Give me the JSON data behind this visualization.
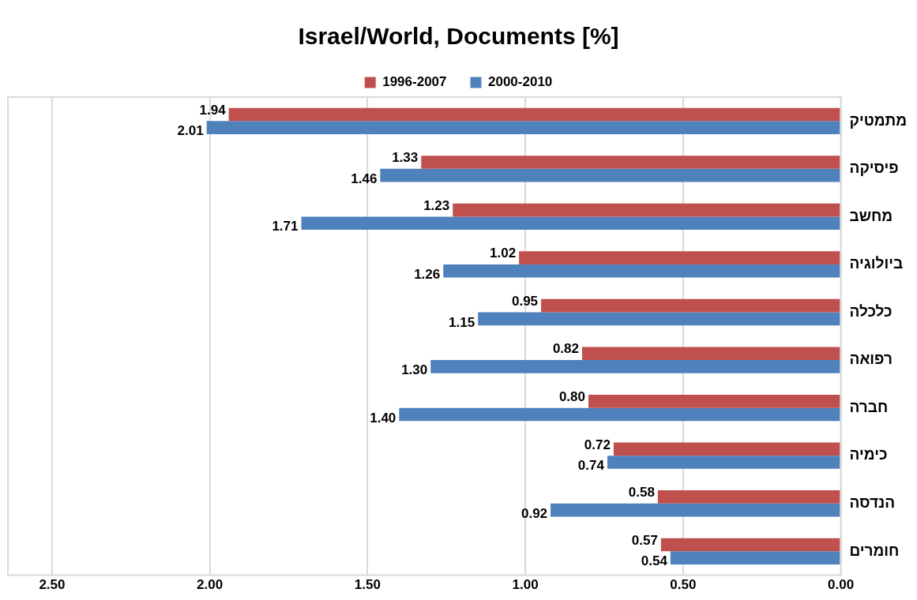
{
  "chart_data": {
    "type": "bar",
    "orientation": "horizontal",
    "title": "Israel/World, Documents [%]",
    "categories": [
      "מתמטיק",
      "פיסיקה",
      "מחשב",
      "ביולוגיה",
      "כלכלה",
      "רפואה",
      "חברה",
      "כימיה",
      "הנדסה",
      "חומרים"
    ],
    "series": [
      {
        "name": "1996-2007",
        "color": "#c0504d",
        "values": [
          1.94,
          1.33,
          1.23,
          1.02,
          0.95,
          0.82,
          0.8,
          0.72,
          0.58,
          0.57
        ],
        "value_labels": [
          "1.94",
          "1.33",
          "1.23",
          "1.02",
          "0.95",
          "0.82",
          "0.80",
          "0.72",
          "0.58",
          "0.57"
        ]
      },
      {
        "name": "2000-2010",
        "color": "#4f81bd",
        "values": [
          2.01,
          1.46,
          1.71,
          1.26,
          1.15,
          1.3,
          1.4,
          0.74,
          0.92,
          0.54
        ],
        "value_labels": [
          "2.01",
          "1.46",
          "1.71",
          "1.26",
          "1.15",
          "1.30",
          "1.40",
          "0.74",
          "0.92",
          "0.54"
        ]
      }
    ],
    "xlim": [
      2.64,
      0
    ],
    "xticks": [
      {
        "value": 2.5,
        "label": "2.50"
      },
      {
        "value": 2,
        "label": "2.00"
      },
      {
        "value": 1.5,
        "label": "1.50"
      },
      {
        "value": 1,
        "label": "1.00"
      },
      {
        "value": 0.5,
        "label": "0.50"
      },
      {
        "value": 0,
        "label": "0.00"
      }
    ],
    "grid": "x",
    "legend": "top"
  }
}
